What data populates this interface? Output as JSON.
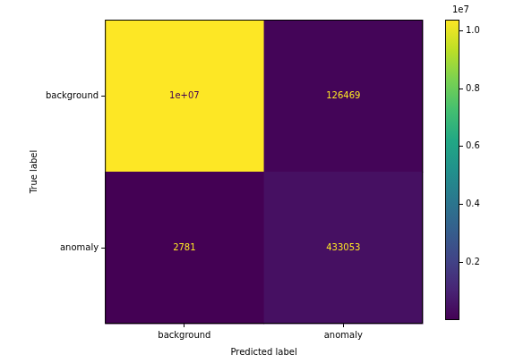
{
  "chart_data": {
    "type": "heatmap",
    "x_label": "Predicted label",
    "y_label": "True label",
    "x_categories": [
      "background",
      "anomaly"
    ],
    "y_categories": [
      "background",
      "anomaly"
    ],
    "values": [
      [
        10380000,
        126469
      ],
      [
        2781,
        433053
      ]
    ],
    "value_labels": [
      [
        "1e+07",
        "126469"
      ],
      [
        "2781",
        "433053"
      ]
    ],
    "data_labels": true,
    "color": "viridis",
    "colorbar": {
      "range": [
        2781,
        10380000
      ],
      "ticks": [
        {
          "value": 2000000,
          "label": "0.2"
        },
        {
          "value": 4000000,
          "label": "0.4"
        },
        {
          "value": 6000000,
          "label": "0.6"
        },
        {
          "value": 8000000,
          "label": "0.8"
        },
        {
          "value": 10000000,
          "label": "1.0"
        }
      ],
      "offset_text": "1e7"
    }
  }
}
